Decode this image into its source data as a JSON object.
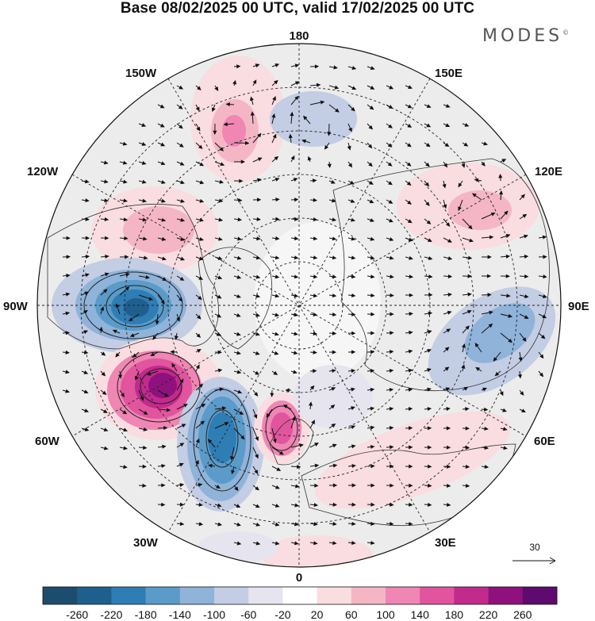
{
  "title": "Base 08/02/2025 00 UTC, valid 17/02/2025 00 UTC",
  "brand": "MODES",
  "brand_mark": "©",
  "longitude_labels": {
    "top": "180",
    "bottom": "0",
    "left": "90W",
    "right": "90E",
    "upper_left_1": "150W",
    "upper_left_2": "120W",
    "upper_right_1": "150E",
    "upper_right_2": "120E",
    "lower_left_1": "60W",
    "lower_left_2": "30W",
    "lower_right_1": "60E",
    "lower_right_2": "30E"
  },
  "reference_vector": {
    "label": "30"
  },
  "colorbar": {
    "labels": [
      "-260",
      "-220",
      "-180",
      "-140",
      "-100",
      "-60",
      "-20",
      "20",
      "60",
      "100",
      "140",
      "180",
      "220",
      "260"
    ],
    "colors": [
      "#1d4d6e",
      "#1f5f8e",
      "#2f7db5",
      "#5a9bc9",
      "#8fb3d9",
      "#c3cde4",
      "#e6e4ef",
      "#ffffff",
      "#f9dde0",
      "#f4b6c5",
      "#ef86b3",
      "#e0559e",
      "#c22a8c",
      "#8f117d",
      "#5e0a6e"
    ]
  }
}
